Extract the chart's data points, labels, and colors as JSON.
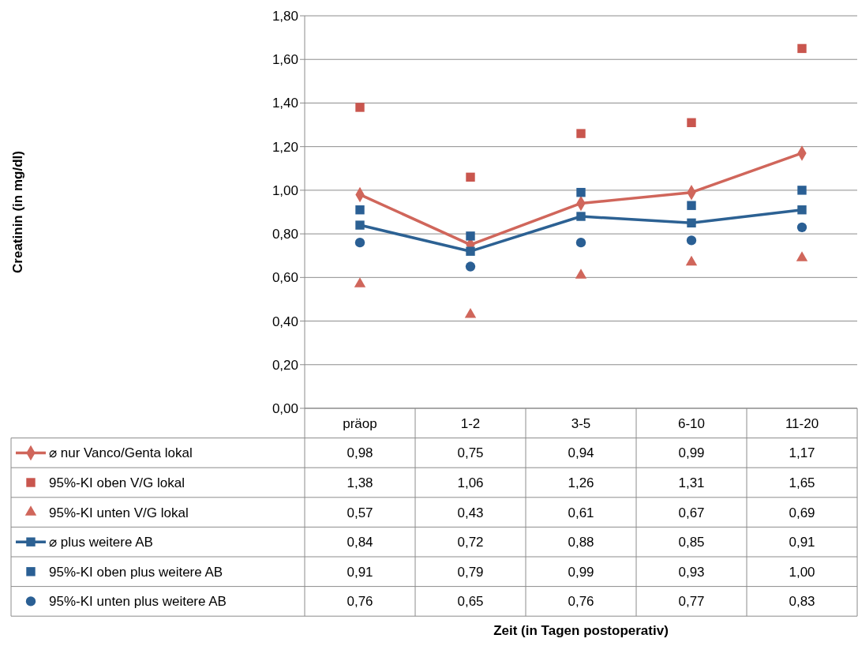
{
  "chart_data": {
    "type": "line",
    "annotations": [
      "Creatinin (in mg/dl)",
      "Zeit (in Tagen postoperativ)"
    ],
    "categories": [
      "präop",
      "1-2",
      "3-5",
      "6-10",
      "11-20"
    ],
    "ylim": [
      0,
      1.8
    ],
    "yticks": [
      {
        "value": 0,
        "label": "0,00"
      },
      {
        "value": 0.2,
        "label": "0,20"
      },
      {
        "value": 0.4,
        "label": "0,40"
      },
      {
        "value": 0.6,
        "label": "0,60"
      },
      {
        "value": 0.8,
        "label": "0,80"
      },
      {
        "value": 1,
        "label": "1,00"
      },
      {
        "value": 1.2,
        "label": "1,20"
      },
      {
        "value": 1.4,
        "label": "1,40"
      },
      {
        "value": 1.6,
        "label": "1,60"
      },
      {
        "value": 1.8,
        "label": "1,80"
      }
    ],
    "grid": "y",
    "legend": "bottom left",
    "series": [
      {
        "name": "⌀ nur Vanco/Genta lokal",
        "type": "line",
        "marker": "diamond",
        "color": "#d0665b",
        "values": [
          0.98,
          0.75,
          0.94,
          0.99,
          1.17
        ],
        "value_labels": [
          "0,98",
          "0,75",
          "0,94",
          "0,99",
          "1,17"
        ]
      },
      {
        "name": "95%-KI oben V/G lokal",
        "type": "scatter",
        "marker": "square",
        "color": "#c9564e",
        "values": [
          1.38,
          1.06,
          1.26,
          1.31,
          1.65
        ],
        "value_labels": [
          "1,38",
          "1,06",
          "1,26",
          "1,31",
          "1,65"
        ]
      },
      {
        "name": "95%-KI unten V/G lokal",
        "type": "scatter",
        "marker": "triangle",
        "color": "#d0665b",
        "values": [
          0.57,
          0.43,
          0.61,
          0.67,
          0.69
        ],
        "value_labels": [
          "0,57",
          "0,43",
          "0,61",
          "0,67",
          "0,69"
        ]
      },
      {
        "name": "⌀ plus weitere AB",
        "type": "line",
        "marker": "square",
        "color": "#2c6193",
        "values": [
          0.84,
          0.72,
          0.88,
          0.85,
          0.91
        ],
        "value_labels": [
          "0,84",
          "0,72",
          "0,88",
          "0,85",
          "0,91"
        ]
      },
      {
        "name": "95%-KI oben plus weitere AB",
        "type": "scatter",
        "marker": "square",
        "color": "#2a5f94",
        "values": [
          0.91,
          0.79,
          0.99,
          0.93,
          1.0
        ],
        "value_labels": [
          "0,91",
          "0,79",
          "0,99",
          "0,93",
          "1,00"
        ]
      },
      {
        "name": "95%-KI unten plus weitere AB",
        "type": "scatter",
        "marker": "circle",
        "color": "#2a5f94",
        "values": [
          0.76,
          0.65,
          0.76,
          0.77,
          0.83
        ],
        "value_labels": [
          "0,76",
          "0,65",
          "0,76",
          "0,77",
          "0,83"
        ]
      }
    ]
  }
}
